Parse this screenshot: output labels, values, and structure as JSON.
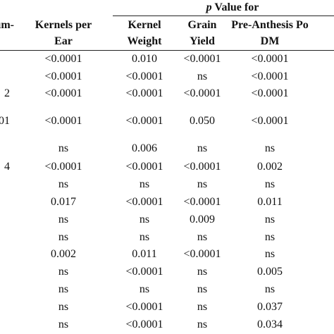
{
  "table": {
    "group_label": {
      "italic": "p",
      "text": "Value for"
    },
    "columns": [
      [
        "um-"
      ],
      [
        "Kernels per",
        "Ear"
      ],
      [
        "Kernel",
        "Weight"
      ],
      [
        "Grain",
        "Yield"
      ],
      [
        "Pre-Anthesis Po",
        "DM"
      ]
    ],
    "rows": [
      [
        null,
        "<0.0001",
        "0.010",
        "<0.0001",
        "<0.0001"
      ],
      [
        null,
        "<0.0001",
        "<0.0001",
        "ns",
        "<0.0001"
      ],
      [
        "2",
        "<0.0001",
        "<0.0001",
        "<0.0001",
        "<0.0001"
      ],
      [
        "01",
        "<0.0001",
        "<0.0001",
        "0.050",
        "<0.0001"
      ],
      [
        null,
        "ns",
        "0.006",
        "ns",
        "ns"
      ],
      [
        "4",
        "<0.0001",
        "<0.0001",
        "<0.0001",
        "0.002"
      ],
      [
        null,
        "ns",
        "ns",
        "ns",
        "ns"
      ],
      [
        null,
        "0.017",
        "<0.0001",
        "<0.0001",
        "0.011"
      ],
      [
        null,
        "ns",
        "ns",
        "0.009",
        "ns"
      ],
      [
        null,
        "ns",
        "ns",
        "ns",
        "ns"
      ],
      [
        null,
        "0.002",
        "0.011",
        "<0.0001",
        "ns"
      ],
      [
        null,
        "ns",
        "<0.0001",
        "ns",
        "0.005"
      ],
      [
        null,
        "ns",
        "ns",
        "ns",
        "ns"
      ],
      [
        null,
        "ns",
        "<0.0001",
        "ns",
        "0.037"
      ],
      [
        null,
        "ns",
        "<0.0001",
        "ns",
        "0.034"
      ]
    ]
  }
}
